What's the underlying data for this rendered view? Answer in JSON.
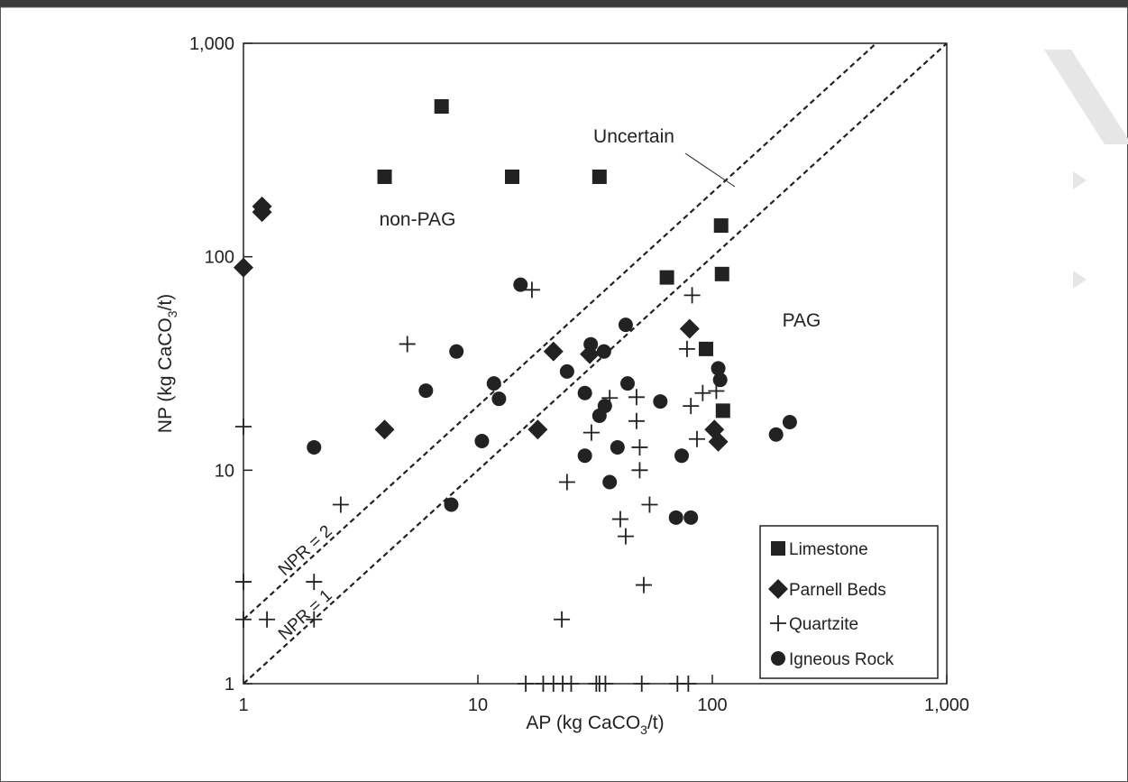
{
  "chart_data": {
    "type": "scatter",
    "xlabel_parts": [
      "AP (kg CaCO",
      "3",
      "/t)"
    ],
    "ylabel_parts": [
      "NP (kg CaCO",
      "3",
      "/t)"
    ],
    "xscale": "log",
    "yscale": "log",
    "xlim": [
      1,
      1000
    ],
    "ylim": [
      1,
      1000
    ],
    "xticks": [
      1,
      10,
      100,
      {
        "value": 1000,
        "label": "1,000"
      }
    ],
    "yticks": [
      1,
      10,
      100,
      {
        "value": 1000,
        "label": "1,000"
      }
    ],
    "legend": "lower right",
    "reference_lines": [
      {
        "label": "NPR = 2",
        "ratio": 2
      },
      {
        "label": "NPR = 1",
        "ratio": 1
      }
    ],
    "annotations": [
      "non-PAG",
      "PAG",
      "Uncertain"
    ],
    "series": [
      {
        "name": "Limestone",
        "marker": "square",
        "color": "#222222",
        "x": [
          7,
          4,
          14,
          33,
          109,
          110,
          64,
          94,
          111
        ],
        "y": [
          506,
          237,
          237,
          237,
          140,
          83,
          80,
          37,
          19
        ]
      },
      {
        "name": "Parnell Beds",
        "marker": "diamond",
        "color": "#222222",
        "x": [
          1,
          1.2,
          1.2,
          4,
          21,
          30,
          18,
          80,
          102,
          106
        ],
        "y": [
          89,
          172,
          162,
          15.5,
          36,
          35,
          15.5,
          46,
          15.5,
          13.6
        ]
      },
      {
        "name": "Quartzite",
        "marker": "plus",
        "color": "#222222",
        "x": [
          17,
          5,
          82,
          78,
          91,
          104,
          81,
          86,
          36.5,
          47.5,
          47.5,
          30.5,
          49,
          49,
          24,
          54,
          40.5,
          42.7,
          51,
          22.8,
          2.6,
          2,
          1.26,
          2,
          1,
          1,
          1,
          16,
          19,
          21,
          23,
          25,
          32,
          33,
          35,
          50,
          71,
          79
        ],
        "y": [
          70,
          39,
          66,
          37,
          23,
          23.5,
          20,
          14,
          21.8,
          22,
          17,
          15,
          12.8,
          10,
          8.8,
          6.9,
          5.9,
          4.9,
          2.9,
          2,
          6.9,
          3,
          2,
          2,
          16,
          3,
          2,
          1,
          1,
          1,
          1,
          1,
          1,
          1,
          1,
          1,
          1,
          1
        ]
      },
      {
        "name": "Igneous Rock",
        "marker": "circle",
        "color": "#222222",
        "x": [
          15.2,
          8.1,
          6,
          2,
          11.7,
          12.3,
          10.4,
          7.7,
          24,
          30.3,
          34.5,
          42.7,
          43.5,
          28.6,
          34.8,
          33,
          28.6,
          39.4,
          36.5,
          60,
          106,
          108,
          74,
          70,
          81,
          187,
          214
        ],
        "y": [
          74,
          36,
          23.6,
          12.8,
          25.5,
          21.6,
          13.7,
          6.9,
          29,
          38.9,
          36,
          48,
          25.5,
          23,
          20,
          18,
          11.7,
          12.8,
          8.8,
          21,
          30,
          26.5,
          11.7,
          6,
          6,
          14.7,
          16.8
        ]
      }
    ]
  }
}
